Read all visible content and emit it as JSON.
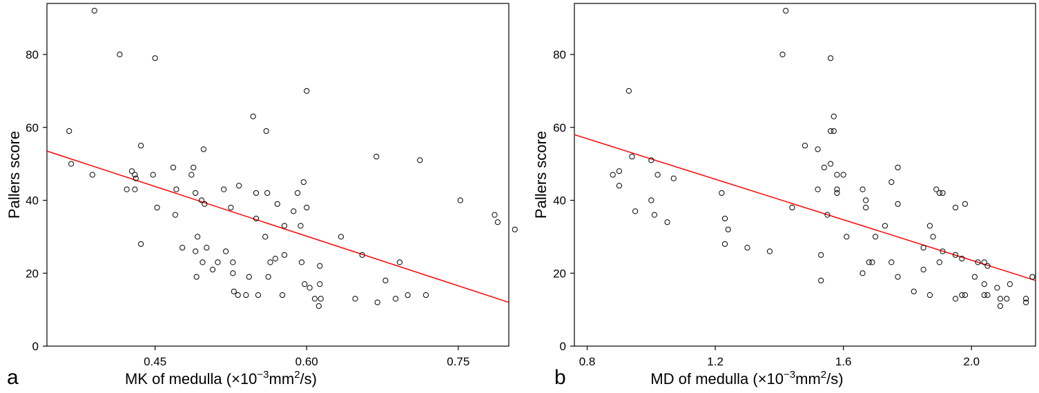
{
  "chart_data": [
    {
      "type": "scatter",
      "panel_label": "a",
      "xlabel": {
        "main": "MK of medulla (",
        "times": "×",
        "base": "10",
        "exp1": "−3",
        "unit": "mm",
        "exp2": "2",
        "tail": "/s)"
      },
      "ylabel": "Pallers score",
      "xlim": [
        0.343,
        0.8
      ],
      "ylim": [
        0,
        94
      ],
      "xticks": [
        0.45,
        0.6,
        0.75
      ],
      "xtick_labels": [
        "0.45",
        "0.60",
        "0.75"
      ],
      "yticks": [
        0,
        20,
        40,
        60,
        80
      ],
      "ytick_labels": [
        "0",
        "20",
        "40",
        "60",
        "80"
      ],
      "grid": false,
      "regression_line": {
        "color": "#ff0000",
        "x": [
          0.343,
          0.8
        ],
        "y": [
          53.5,
          12.0
        ]
      },
      "points": [
        [
          0.39,
          92
        ],
        [
          0.415,
          80
        ],
        [
          0.45,
          79
        ],
        [
          0.365,
          59
        ],
        [
          0.367,
          50
        ],
        [
          0.388,
          47
        ],
        [
          0.427,
          48
        ],
        [
          0.43,
          47
        ],
        [
          0.431,
          46
        ],
        [
          0.43,
          43
        ],
        [
          0.422,
          43
        ],
        [
          0.436,
          55
        ],
        [
          0.436,
          28
        ],
        [
          0.448,
          47
        ],
        [
          0.452,
          38
        ],
        [
          0.468,
          49
        ],
        [
          0.471,
          43
        ],
        [
          0.47,
          36
        ],
        [
          0.477,
          27
        ],
        [
          0.488,
          49
        ],
        [
          0.486,
          47
        ],
        [
          0.49,
          42
        ],
        [
          0.496,
          40
        ],
        [
          0.499,
          39
        ],
        [
          0.498,
          54
        ],
        [
          0.492,
          30
        ],
        [
          0.49,
          26
        ],
        [
          0.497,
          23
        ],
        [
          0.501,
          27
        ],
        [
          0.491,
          19
        ],
        [
          0.507,
          21
        ],
        [
          0.512,
          23
        ],
        [
          0.52,
          26
        ],
        [
          0.525,
          38
        ],
        [
          0.518,
          43
        ],
        [
          0.527,
          23
        ],
        [
          0.527,
          20
        ],
        [
          0.528,
          15
        ],
        [
          0.532,
          14
        ],
        [
          0.533,
          44
        ],
        [
          0.543,
          19
        ],
        [
          0.54,
          14
        ],
        [
          0.55,
          42
        ],
        [
          0.547,
          63
        ],
        [
          0.55,
          35
        ],
        [
          0.552,
          14
        ],
        [
          0.559,
          30
        ],
        [
          0.56,
          59
        ],
        [
          0.561,
          42
        ],
        [
          0.562,
          19
        ],
        [
          0.564,
          23
        ],
        [
          0.569,
          24
        ],
        [
          0.571,
          39
        ],
        [
          0.576,
          14
        ],
        [
          0.578,
          25
        ],
        [
          0.578,
          33
        ],
        [
          0.587,
          37
        ],
        [
          0.591,
          42
        ],
        [
          0.594,
          33
        ],
        [
          0.595,
          23
        ],
        [
          0.597,
          45
        ],
        [
          0.6,
          38
        ],
        [
          0.598,
          17
        ],
        [
          0.6,
          70
        ],
        [
          0.603,
          16
        ],
        [
          0.608,
          13
        ],
        [
          0.612,
          11
        ],
        [
          0.613,
          17
        ],
        [
          0.613,
          22
        ],
        [
          0.614,
          13
        ],
        [
          0.634,
          30
        ],
        [
          0.648,
          13
        ],
        [
          0.655,
          25
        ],
        [
          0.669,
          52
        ],
        [
          0.67,
          12
        ],
        [
          0.678,
          18
        ],
        [
          0.688,
          13
        ],
        [
          0.692,
          23
        ],
        [
          0.7,
          14
        ],
        [
          0.712,
          51
        ],
        [
          0.718,
          14
        ],
        [
          0.752,
          40
        ],
        [
          0.786,
          36
        ],
        [
          0.789,
          34
        ],
        [
          0.806,
          32
        ]
      ]
    },
    {
      "type": "scatter",
      "panel_label": "b",
      "xlabel": {
        "main": "MD of medulla (",
        "times": "×",
        "base": "10",
        "exp1": "−3",
        "unit": "mm",
        "exp2": "2",
        "tail": "/s)"
      },
      "ylabel": "Pallers score",
      "xlim": [
        0.76,
        2.2
      ],
      "ylim": [
        0,
        94
      ],
      "xticks": [
        0.8,
        1.2,
        1.6,
        2.0
      ],
      "xtick_labels": [
        "0.8",
        "1.2",
        "1.6",
        "2.0"
      ],
      "yticks": [
        0,
        20,
        40,
        60,
        80
      ],
      "ytick_labels": [
        "0",
        "20",
        "40",
        "60",
        "80"
      ],
      "grid": false,
      "regression_line": {
        "color": "#ff0000",
        "x": [
          0.76,
          2.2
        ],
        "y": [
          58.0,
          18.0
        ]
      },
      "points": [
        [
          1.42,
          92
        ],
        [
          1.41,
          80
        ],
        [
          1.56,
          79
        ],
        [
          0.93,
          70
        ],
        [
          1.57,
          63
        ],
        [
          1.56,
          59
        ],
        [
          1.57,
          59
        ],
        [
          1.48,
          55
        ],
        [
          1.52,
          54
        ],
        [
          0.94,
          52
        ],
        [
          1.0,
          51
        ],
        [
          1.56,
          50
        ],
        [
          1.54,
          49
        ],
        [
          1.77,
          49
        ],
        [
          0.88,
          47
        ],
        [
          0.9,
          48
        ],
        [
          1.02,
          47
        ],
        [
          1.07,
          46
        ],
        [
          1.58,
          47
        ],
        [
          1.6,
          47
        ],
        [
          1.75,
          45
        ],
        [
          0.9,
          44
        ],
        [
          1.52,
          43
        ],
        [
          1.58,
          43
        ],
        [
          1.66,
          43
        ],
        [
          1.89,
          43
        ],
        [
          1.22,
          42
        ],
        [
          1.58,
          42
        ],
        [
          1.9,
          42
        ],
        [
          1.91,
          42
        ],
        [
          1.0,
          40
        ],
        [
          1.67,
          40
        ],
        [
          1.77,
          39
        ],
        [
          1.98,
          39
        ],
        [
          1.44,
          38
        ],
        [
          1.67,
          38
        ],
        [
          1.95,
          38
        ],
        [
          0.95,
          37
        ],
        [
          1.55,
          36
        ],
        [
          1.01,
          36
        ],
        [
          1.23,
          35
        ],
        [
          1.05,
          34
        ],
        [
          1.73,
          33
        ],
        [
          1.87,
          33
        ],
        [
          1.24,
          32
        ],
        [
          1.61,
          30
        ],
        [
          1.7,
          30
        ],
        [
          1.88,
          30
        ],
        [
          1.23,
          28
        ],
        [
          1.3,
          27
        ],
        [
          1.85,
          27
        ],
        [
          1.37,
          26
        ],
        [
          1.91,
          26
        ],
        [
          1.53,
          25
        ],
        [
          1.95,
          25
        ],
        [
          1.97,
          24
        ],
        [
          1.68,
          23
        ],
        [
          1.69,
          23
        ],
        [
          1.75,
          23
        ],
        [
          1.9,
          23
        ],
        [
          2.02,
          23
        ],
        [
          2.04,
          23
        ],
        [
          2.05,
          22
        ],
        [
          1.85,
          21
        ],
        [
          1.66,
          20
        ],
        [
          1.77,
          19
        ],
        [
          2.01,
          19
        ],
        [
          2.19,
          19
        ],
        [
          1.53,
          18
        ],
        [
          2.04,
          17
        ],
        [
          2.12,
          17
        ],
        [
          2.08,
          16
        ],
        [
          1.82,
          15
        ],
        [
          1.87,
          14
        ],
        [
          1.97,
          14
        ],
        [
          1.98,
          14
        ],
        [
          2.04,
          14
        ],
        [
          2.05,
          14
        ],
        [
          1.95,
          13
        ],
        [
          2.09,
          13
        ],
        [
          2.11,
          13
        ],
        [
          2.17,
          13
        ],
        [
          2.17,
          12
        ],
        [
          2.09,
          11
        ]
      ]
    }
  ]
}
